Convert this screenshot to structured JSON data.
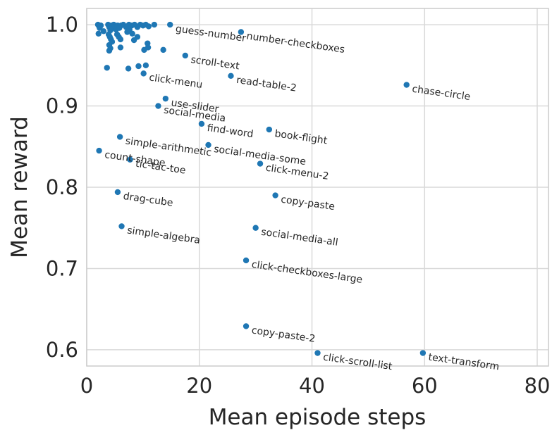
{
  "chart_data": {
    "type": "scatter",
    "xlabel": "Mean episode steps",
    "ylabel": "Mean reward",
    "xlim": [
      0,
      82
    ],
    "ylim": [
      0.58,
      1.02
    ],
    "xticks": [
      0,
      20,
      40,
      60,
      80
    ],
    "yticks": [
      0.6,
      0.7,
      0.8,
      0.9,
      1.0
    ],
    "ytick_labels": [
      "0.6",
      "0.7",
      "0.8",
      "0.9",
      "1.0"
    ],
    "xtick_labels": [
      "0",
      "20",
      "40",
      "60",
      "80"
    ],
    "grid": true,
    "point_color": "#1f77b4",
    "labeled_points": [
      {
        "x": 14.8,
        "y": 1.0,
        "label": "guess-number"
      },
      {
        "x": 27.4,
        "y": 0.991,
        "label": "number-checkboxes"
      },
      {
        "x": 17.5,
        "y": 0.962,
        "label": "scroll-text"
      },
      {
        "x": 25.6,
        "y": 0.937,
        "label": "read-table-2"
      },
      {
        "x": 10.1,
        "y": 0.94,
        "label": "click-menu"
      },
      {
        "x": 56.8,
        "y": 0.926,
        "label": "chase-circle"
      },
      {
        "x": 14.0,
        "y": 0.909,
        "label": "use-slider"
      },
      {
        "x": 12.7,
        "y": 0.9,
        "label": "social-media"
      },
      {
        "x": 20.4,
        "y": 0.878,
        "label": "find-word"
      },
      {
        "x": 32.4,
        "y": 0.871,
        "label": "book-flight"
      },
      {
        "x": 5.9,
        "y": 0.862,
        "label": "simple-arithmetic"
      },
      {
        "x": 21.6,
        "y": 0.852,
        "label": "social-media-some"
      },
      {
        "x": 2.2,
        "y": 0.845,
        "label": "count-shape"
      },
      {
        "x": 7.7,
        "y": 0.834,
        "label": "tic-tac-toe"
      },
      {
        "x": 30.8,
        "y": 0.829,
        "label": "click-menu-2"
      },
      {
        "x": 5.5,
        "y": 0.794,
        "label": "drag-cube"
      },
      {
        "x": 33.5,
        "y": 0.79,
        "label": "copy-paste"
      },
      {
        "x": 6.2,
        "y": 0.752,
        "label": "simple-algebra"
      },
      {
        "x": 30.0,
        "y": 0.75,
        "label": "social-media-all"
      },
      {
        "x": 28.3,
        "y": 0.71,
        "label": "click-checkboxes-large"
      },
      {
        "x": 28.3,
        "y": 0.629,
        "label": "copy-paste-2"
      },
      {
        "x": 41.0,
        "y": 0.596,
        "label": "click-scroll-list"
      },
      {
        "x": 59.7,
        "y": 0.596,
        "label": "text-transform"
      }
    ],
    "unlabeled_points": [
      {
        "x": 2.0,
        "y": 1.0
      },
      {
        "x": 2.2,
        "y": 0.998
      },
      {
        "x": 2.3,
        "y": 0.996
      },
      {
        "x": 2.5,
        "y": 0.999
      },
      {
        "x": 2.1,
        "y": 0.989
      },
      {
        "x": 3.0,
        "y": 0.992
      },
      {
        "x": 3.8,
        "y": 1.0
      },
      {
        "x": 4.0,
        "y": 0.997
      },
      {
        "x": 4.2,
        "y": 0.993
      },
      {
        "x": 4.4,
        "y": 0.999
      },
      {
        "x": 4.6,
        "y": 0.996
      },
      {
        "x": 4.8,
        "y": 1.0
      },
      {
        "x": 5.0,
        "y": 0.998
      },
      {
        "x": 5.2,
        "y": 0.994
      },
      {
        "x": 5.5,
        "y": 0.999
      },
      {
        "x": 5.8,
        "y": 0.996
      },
      {
        "x": 6.1,
        "y": 0.999
      },
      {
        "x": 6.5,
        "y": 1.0
      },
      {
        "x": 7.0,
        "y": 0.997
      },
      {
        "x": 7.5,
        "y": 1.0
      },
      {
        "x": 8.0,
        "y": 0.999
      },
      {
        "x": 8.5,
        "y": 1.0
      },
      {
        "x": 9.0,
        "y": 0.997
      },
      {
        "x": 9.5,
        "y": 1.0
      },
      {
        "x": 10.0,
        "y": 0.999
      },
      {
        "x": 10.5,
        "y": 1.0
      },
      {
        "x": 11.0,
        "y": 0.998
      },
      {
        "x": 12.0,
        "y": 1.0
      },
      {
        "x": 3.9,
        "y": 0.988
      },
      {
        "x": 4.1,
        "y": 0.985
      },
      {
        "x": 4.3,
        "y": 0.982
      },
      {
        "x": 4.5,
        "y": 0.979
      },
      {
        "x": 4.0,
        "y": 0.975
      },
      {
        "x": 4.2,
        "y": 0.971
      },
      {
        "x": 4.0,
        "y": 0.968
      },
      {
        "x": 5.4,
        "y": 0.988
      },
      {
        "x": 5.7,
        "y": 0.985
      },
      {
        "x": 6.0,
        "y": 0.982
      },
      {
        "x": 6.0,
        "y": 0.972
      },
      {
        "x": 7.2,
        "y": 0.991
      },
      {
        "x": 7.6,
        "y": 0.994
      },
      {
        "x": 8.1,
        "y": 0.989
      },
      {
        "x": 8.4,
        "y": 0.981
      },
      {
        "x": 9.0,
        "y": 0.985
      },
      {
        "x": 10.2,
        "y": 0.969
      },
      {
        "x": 10.8,
        "y": 0.977
      },
      {
        "x": 10.9,
        "y": 0.972
      },
      {
        "x": 13.6,
        "y": 0.969
      },
      {
        "x": 3.6,
        "y": 0.947
      },
      {
        "x": 7.4,
        "y": 0.946
      },
      {
        "x": 9.2,
        "y": 0.949
      },
      {
        "x": 10.5,
        "y": 0.95
      }
    ],
    "label_angle_deg": 8
  }
}
